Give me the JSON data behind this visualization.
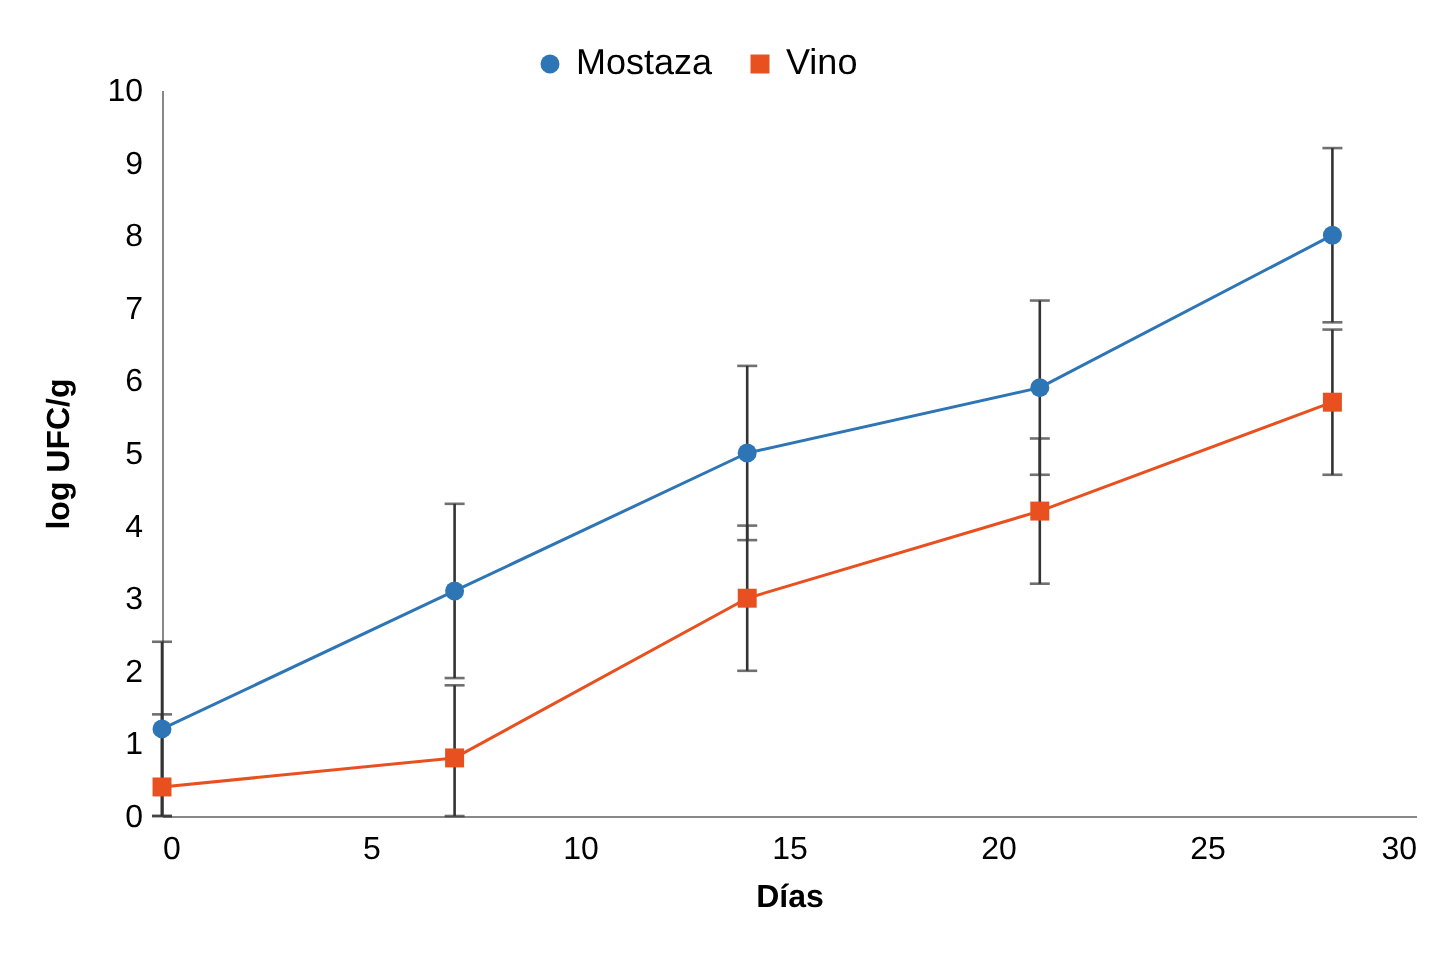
{
  "chart_data": {
    "type": "line",
    "xlabel": "Días",
    "ylabel": "log UFC/g",
    "x": [
      0,
      7,
      14,
      21,
      28
    ],
    "series": [
      {
        "name": "Mostaza",
        "color": "#2e75b6",
        "marker": "circle",
        "values": [
          1.2,
          3.1,
          5.0,
          5.9,
          8.0
        ],
        "errors": [
          1.2,
          1.2,
          1.2,
          1.2,
          1.2
        ]
      },
      {
        "name": "Vino",
        "color": "#e8501f",
        "marker": "square",
        "values": [
          0.4,
          0.8,
          3.0,
          4.2,
          5.7
        ],
        "errors": [
          [
            0,
            1.4
          ],
          [
            0,
            1.8
          ],
          1.0,
          1.0,
          1.0
        ]
      }
    ],
    "xlim": [
      0,
      30
    ],
    "xticks": [
      0,
      5,
      10,
      15,
      20,
      25,
      30
    ],
    "ylim": [
      0,
      10
    ],
    "yticks": [
      0,
      1,
      2,
      3,
      4,
      5,
      6,
      7,
      8,
      9,
      10
    ],
    "grid": false,
    "legend": "top",
    "line_style": "solid"
  }
}
